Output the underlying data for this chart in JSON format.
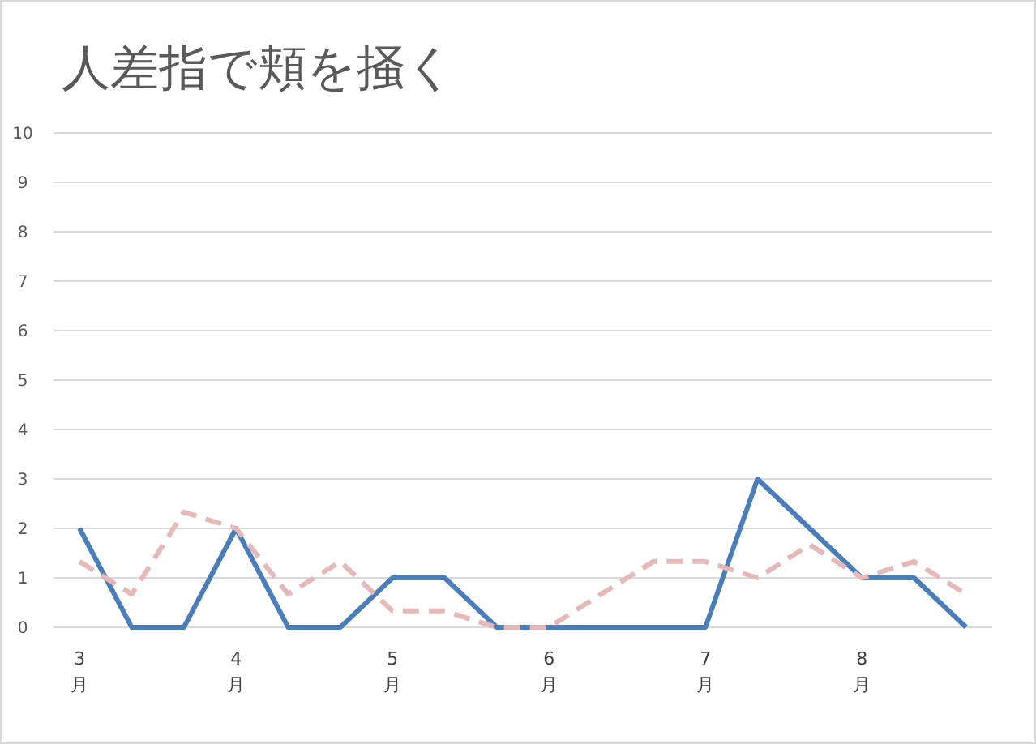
{
  "chart_data": {
    "type": "line",
    "title": "人差指で頬を掻く",
    "categories": [
      "3月",
      null,
      null,
      "4月",
      null,
      null,
      "5月",
      null,
      null,
      "6月",
      null,
      null,
      "7月",
      null,
      null,
      "8月",
      null,
      null
    ],
    "series": [
      {
        "color": "#4a7ebb",
        "line_style": "solid",
        "values": [
          2,
          0,
          0,
          2,
          0,
          0,
          1,
          1,
          0,
          0,
          0,
          0,
          0,
          3,
          2,
          1,
          1,
          0
        ]
      },
      {
        "color": "#e6b9b8",
        "line_style": "dashed",
        "values": [
          1.33,
          0.67,
          2.33,
          2,
          0.67,
          1.33,
          0.33,
          0.33,
          0,
          0,
          0.67,
          1.33,
          1.33,
          1,
          1.67,
          1,
          1.33,
          0.67
        ]
      }
    ],
    "ylim": [
      0,
      10
    ],
    "yticks": [
      0,
      1,
      2,
      3,
      4,
      5,
      6,
      7,
      8,
      9,
      10
    ],
    "grid": "y",
    "marker": "none"
  }
}
